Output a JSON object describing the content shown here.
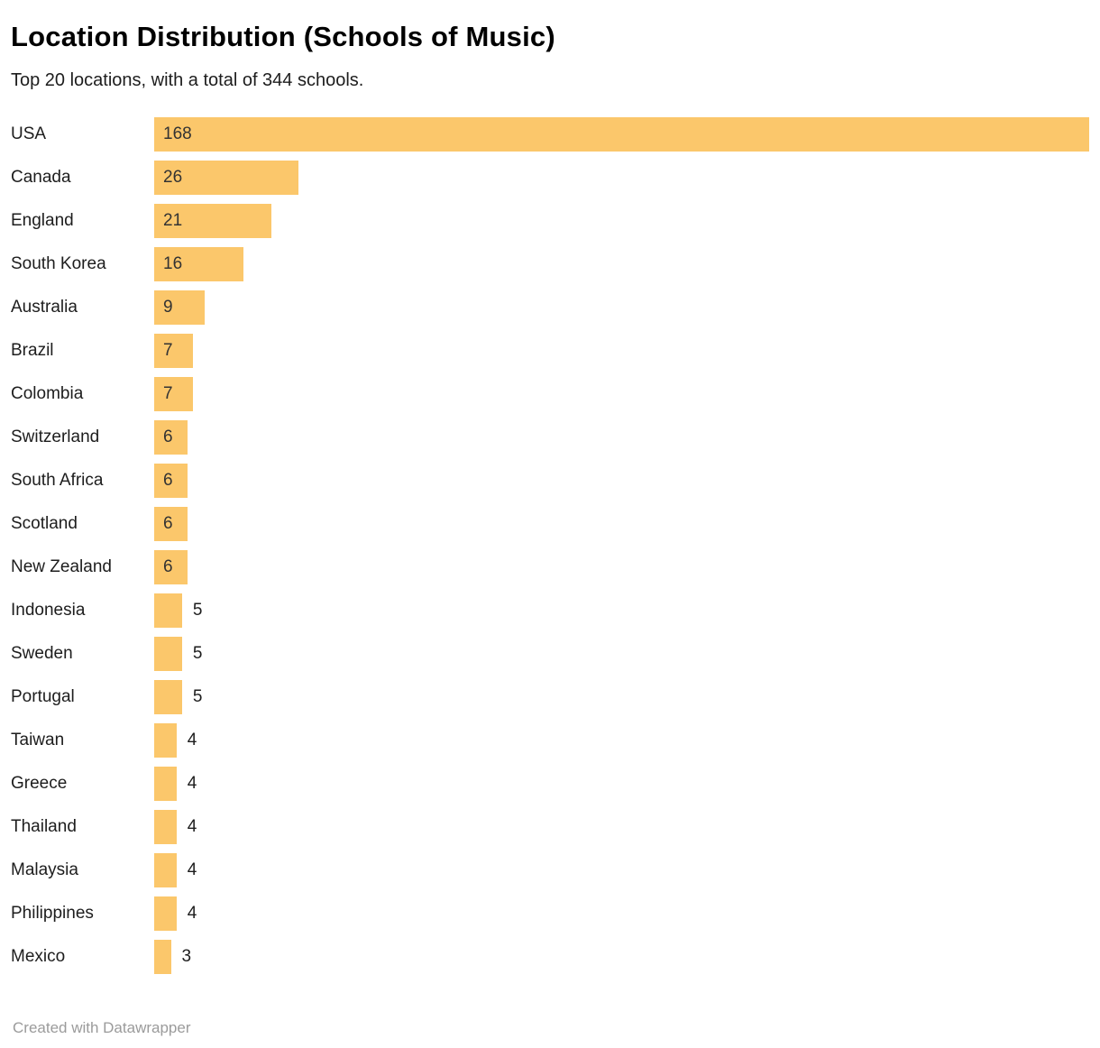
{
  "header": {
    "title": "Location Distribution (Schools of Music)",
    "subtitle": "Top 20 locations, with a total of 344 schools."
  },
  "footer": {
    "credit": "Created with Datawrapper"
  },
  "colors": {
    "bar": "#FBC76B",
    "value_text_inside": "#333333",
    "label_text": "#1d1d1d",
    "footer_text": "#9b9b9b"
  },
  "chart_data": {
    "type": "bar",
    "orientation": "horizontal",
    "title": "Location Distribution (Schools of Music)",
    "subtitle": "Top 20 locations, with a total of 344 schools.",
    "categories": [
      "USA",
      "Canada",
      "England",
      "South Korea",
      "Australia",
      "Brazil",
      "Colombia",
      "Switzerland",
      "South Africa",
      "Scotland",
      "New Zealand",
      "Indonesia",
      "Sweden",
      "Portugal",
      "Taiwan",
      "Greece",
      "Thailand",
      "Malaysia",
      "Philippines",
      "Mexico"
    ],
    "values": [
      168,
      26,
      21,
      16,
      9,
      7,
      7,
      6,
      6,
      6,
      6,
      5,
      5,
      5,
      4,
      4,
      4,
      4,
      4,
      3
    ],
    "xlabel": "",
    "ylabel": "",
    "xlim": [
      0,
      168
    ],
    "grid": false,
    "legend": false,
    "value_labels": true,
    "inside_label_min_value": 6
  }
}
